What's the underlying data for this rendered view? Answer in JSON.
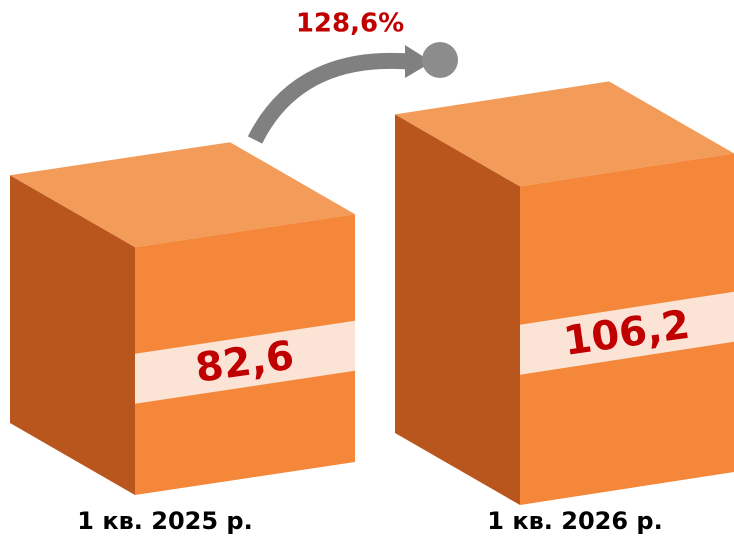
{
  "chart_data": {
    "type": "bar",
    "annotation": "128,6%",
    "categories": [
      "1 кв. 2025 р.",
      "1 кв. 2026 р."
    ],
    "values": [
      82.6,
      106.2
    ],
    "value_labels": [
      "82,6",
      "106,2"
    ],
    "color": "#f4873a"
  }
}
